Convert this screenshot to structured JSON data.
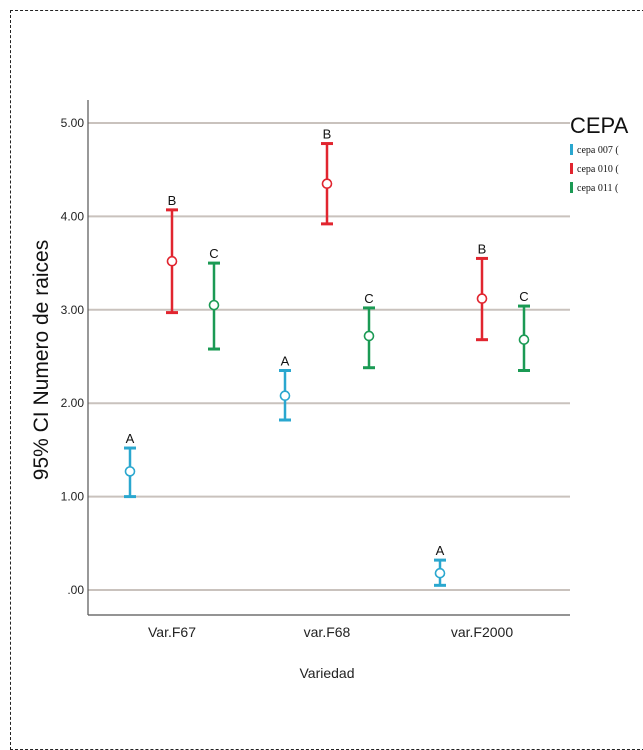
{
  "chart_data": {
    "type": "errorbar",
    "xlabel": "Variedad",
    "ylabel": "95% CI Numero de raices",
    "ylim": [
      -0.25,
      5.2
    ],
    "yticks": [
      ".00",
      "1.00",
      "2.00",
      "3.00",
      "4.00",
      "5.00"
    ],
    "categories": [
      "Var.F67",
      "var.F68",
      "var.F2000"
    ],
    "grid": true,
    "legend": {
      "title": "CEPA",
      "placement": "top-right"
    },
    "series": [
      {
        "name": "cepa 007 (",
        "color": "#2aa7cf",
        "mean": [
          1.27,
          2.08,
          0.18
        ],
        "lower": [
          1.0,
          1.82,
          0.05
        ],
        "upper": [
          1.52,
          2.35,
          0.32
        ],
        "labels": [
          "A",
          "A",
          "A"
        ]
      },
      {
        "name": "cepa 010 (",
        "color": "#e1252f",
        "mean": [
          3.52,
          4.35,
          3.12
        ],
        "lower": [
          2.97,
          3.92,
          2.68
        ],
        "upper": [
          4.07,
          4.78,
          3.55
        ],
        "labels": [
          "B",
          "B",
          "B"
        ]
      },
      {
        "name": "cepa 011 (",
        "color": "#1b9a54",
        "mean": [
          3.05,
          2.72,
          2.68
        ],
        "lower": [
          2.58,
          2.38,
          2.35
        ],
        "upper": [
          3.5,
          3.02,
          3.04
        ],
        "labels": [
          "C",
          "C",
          "C"
        ]
      }
    ]
  }
}
